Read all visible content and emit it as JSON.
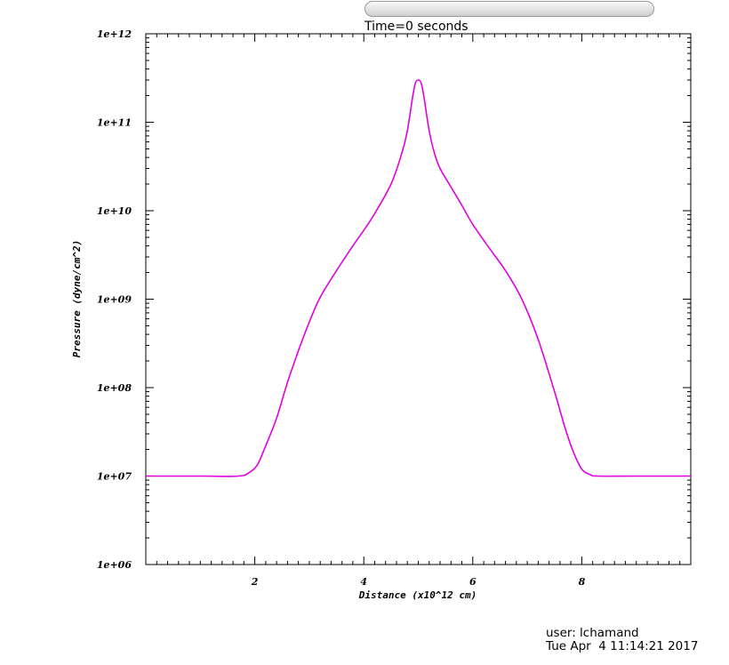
{
  "time_control": {
    "label": "Time=0 seconds"
  },
  "chart_data": {
    "type": "line",
    "xlabel": "Distance (x10^12 cm)",
    "ylabel": "Pressure (dyne/cm^2)",
    "xlim": [
      0,
      10
    ],
    "ylim": [
      1000000.0,
      1000000000000.0
    ],
    "yscale": "log",
    "xticks": [
      2,
      4,
      6,
      8
    ],
    "xtick_labels": [
      "2",
      "4",
      "6",
      "8"
    ],
    "yticks": [
      1000000.0,
      10000000.0,
      100000000.0,
      1000000000.0,
      10000000000.0,
      100000000000.0,
      1000000000000.0
    ],
    "ytick_labels": [
      "1e+06",
      "1e+07",
      "1e+08",
      "1e+09",
      "1e+10",
      "1e+11",
      "1e+12"
    ],
    "grid": false,
    "series": [
      {
        "color": "#e000e0",
        "x": [
          0,
          1.0,
          1.7,
          1.9,
          2.05,
          2.2,
          2.4,
          2.6,
          2.8,
          3.0,
          3.2,
          3.5,
          3.8,
          4.0,
          4.2,
          4.5,
          4.7,
          4.8,
          4.9,
          4.95,
          5.0,
          5.05,
          5.1,
          5.2,
          5.3,
          5.4,
          5.6,
          5.8,
          6.0,
          6.3,
          6.6,
          6.9,
          7.2,
          7.5,
          7.7,
          7.85,
          8.0,
          8.15,
          8.3,
          9.0,
          10.0
        ],
        "y": [
          10000000.0,
          10000000.0,
          10000000.0,
          11000000.0,
          13500000.0,
          22000000.0,
          45000000.0,
          115000000.0,
          260000000.0,
          550000000.0,
          1050000000.0,
          2100000000.0,
          4000000000.0,
          6000000000.0,
          9300000000.0,
          20000000000.0,
          45000000000.0,
          80000000000.0,
          200000000000.0,
          280000000000.0,
          300000000000.0,
          280000000000.0,
          200000000000.0,
          80000000000.0,
          44000000000.0,
          30000000000.0,
          18500000000.0,
          11500000000.0,
          7000000000.0,
          3800000000.0,
          2100000000.0,
          1000000000.0,
          350000000.0,
          90000000.0,
          34000000.0,
          18500000.0,
          12000000.0,
          10400000.0,
          10000000.0,
          10000000.0,
          10000000.0
        ]
      }
    ]
  },
  "footer": {
    "user": "user: lchamand",
    "date": "Tue Apr  4 11:14:21 2017"
  }
}
